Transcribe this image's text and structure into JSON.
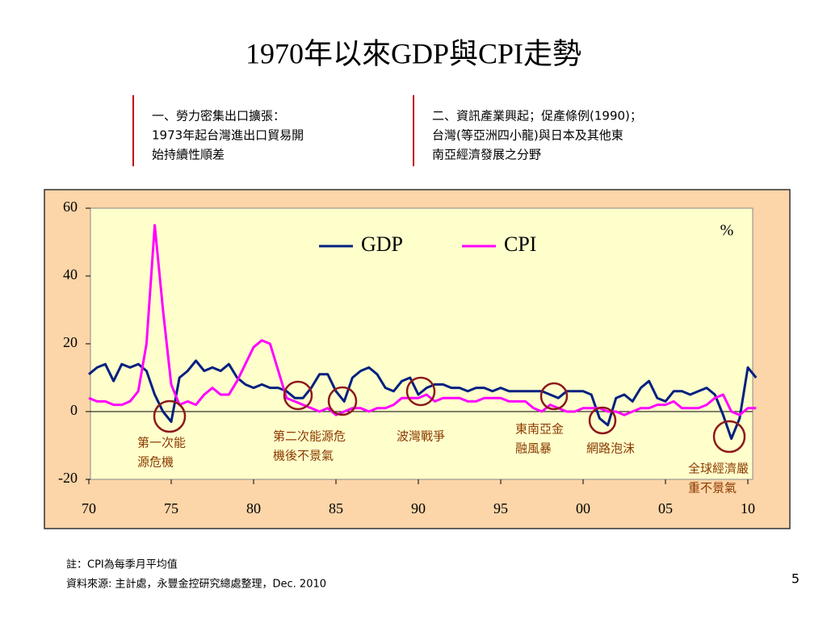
{
  "title": "1970年以來GDP與CPI走勢",
  "notes": [
    {
      "lines": [
        "一、勞力密集出口擴張：",
        "1973年起台灣進出口貿易開",
        "始持續性順差"
      ]
    },
    {
      "lines": [
        "二、資訊產業興起；促產條例(1990)；",
        "台灣(等亞洲四小龍)與日本及其他東",
        "南亞經濟發展之分野"
      ]
    }
  ],
  "footnotes": [
    "註：CPI為每季月平均值",
    "資料來源: 主計處，永豐金控研究總處整理，Dec. 2010"
  ],
  "page_number": "5",
  "chart_data": {
    "type": "line",
    "unit_label": "%",
    "x": [
      1970,
      1970.5,
      1971,
      1971.5,
      1972,
      1972.5,
      1973,
      1973.5,
      1974,
      1974.5,
      1975,
      1975.5,
      1976,
      1976.5,
      1977,
      1977.5,
      1978,
      1978.5,
      1979,
      1979.5,
      1980,
      1980.5,
      1981,
      1981.5,
      1982,
      1982.5,
      1983,
      1983.5,
      1984,
      1984.5,
      1985,
      1985.5,
      1986,
      1986.5,
      1987,
      1987.5,
      1988,
      1988.5,
      1989,
      1989.5,
      1990,
      1990.5,
      1991,
      1991.5,
      1992,
      1992.5,
      1993,
      1993.5,
      1994,
      1994.5,
      1995,
      1995.5,
      1996,
      1996.5,
      1997,
      1997.5,
      1998,
      1998.5,
      1999,
      1999.5,
      2000,
      2000.5,
      2001,
      2001.5,
      2002,
      2002.5,
      2003,
      2003.5,
      2004,
      2004.5,
      2005,
      2005.5,
      2006,
      2006.5,
      2007,
      2007.5,
      2008,
      2008.5,
      2009,
      2009.5,
      2010,
      2010.5
    ],
    "series": [
      {
        "name": "GDP",
        "color": "#002080",
        "values": [
          11,
          13,
          14,
          9,
          14,
          13,
          14,
          12,
          5,
          0,
          -3,
          10,
          12,
          15,
          12,
          13,
          12,
          14,
          10,
          8,
          7,
          8,
          7,
          7,
          6,
          4,
          4,
          7,
          11,
          11,
          6,
          3,
          10,
          12,
          13,
          11,
          7,
          6,
          9,
          10,
          5,
          7,
          8,
          8,
          7,
          7,
          6,
          7,
          7,
          6,
          7,
          6,
          6,
          6,
          6,
          6,
          5,
          4,
          6,
          6,
          6,
          5,
          -2,
          -4,
          4,
          5,
          3,
          7,
          9,
          4,
          3,
          6,
          6,
          5,
          6,
          7,
          5,
          -1,
          -8,
          -2,
          13,
          10
        ]
      },
      {
        "name": "CPI",
        "color": "#ff00ff",
        "values": [
          4,
          3,
          3,
          2,
          2,
          3,
          6,
          20,
          55,
          30,
          8,
          2,
          3,
          2,
          5,
          7,
          5,
          5,
          9,
          14,
          19,
          21,
          20,
          12,
          4,
          3,
          2,
          1,
          0,
          1,
          -1,
          0,
          1,
          1,
          0,
          1,
          1,
          2,
          4,
          4,
          4,
          5,
          3,
          4,
          4,
          4,
          3,
          3,
          4,
          4,
          4,
          3,
          3,
          3,
          1,
          0,
          2,
          1,
          0,
          0,
          1,
          1,
          1,
          0,
          0,
          -1,
          0,
          1,
          1,
          2,
          2,
          3,
          1,
          1,
          1,
          2,
          4,
          5,
          0,
          -1,
          1,
          1
        ]
      }
    ],
    "xlim": [
      1970,
      2010.5
    ],
    "xticks": [
      {
        "value": 1970,
        "label": "70"
      },
      {
        "value": 1975,
        "label": "75"
      },
      {
        "value": 1980,
        "label": "80"
      },
      {
        "value": 1985,
        "label": "85"
      },
      {
        "value": 1990,
        "label": "90"
      },
      {
        "value": 1995,
        "label": "95"
      },
      {
        "value": 2000,
        "label": "00"
      },
      {
        "value": 2005,
        "label": "05"
      },
      {
        "value": 2010,
        "label": "10"
      }
    ],
    "ylim": [
      -20,
      60
    ],
    "yticks": [
      60,
      40,
      20,
      0,
      -20
    ],
    "annotations": [
      {
        "lines": [
          "第一次能",
          "源危機"
        ]
      },
      {
        "lines": [
          "第二次能源危",
          "機後不景氣"
        ]
      },
      {
        "lines": [
          "波灣戰爭"
        ]
      },
      {
        "lines": [
          "東南亞金",
          "融風暴"
        ]
      },
      {
        "lines": [
          "網路泡沫"
        ]
      },
      {
        "lines": [
          "全球經濟嚴",
          "重不景氣"
        ]
      }
    ]
  }
}
